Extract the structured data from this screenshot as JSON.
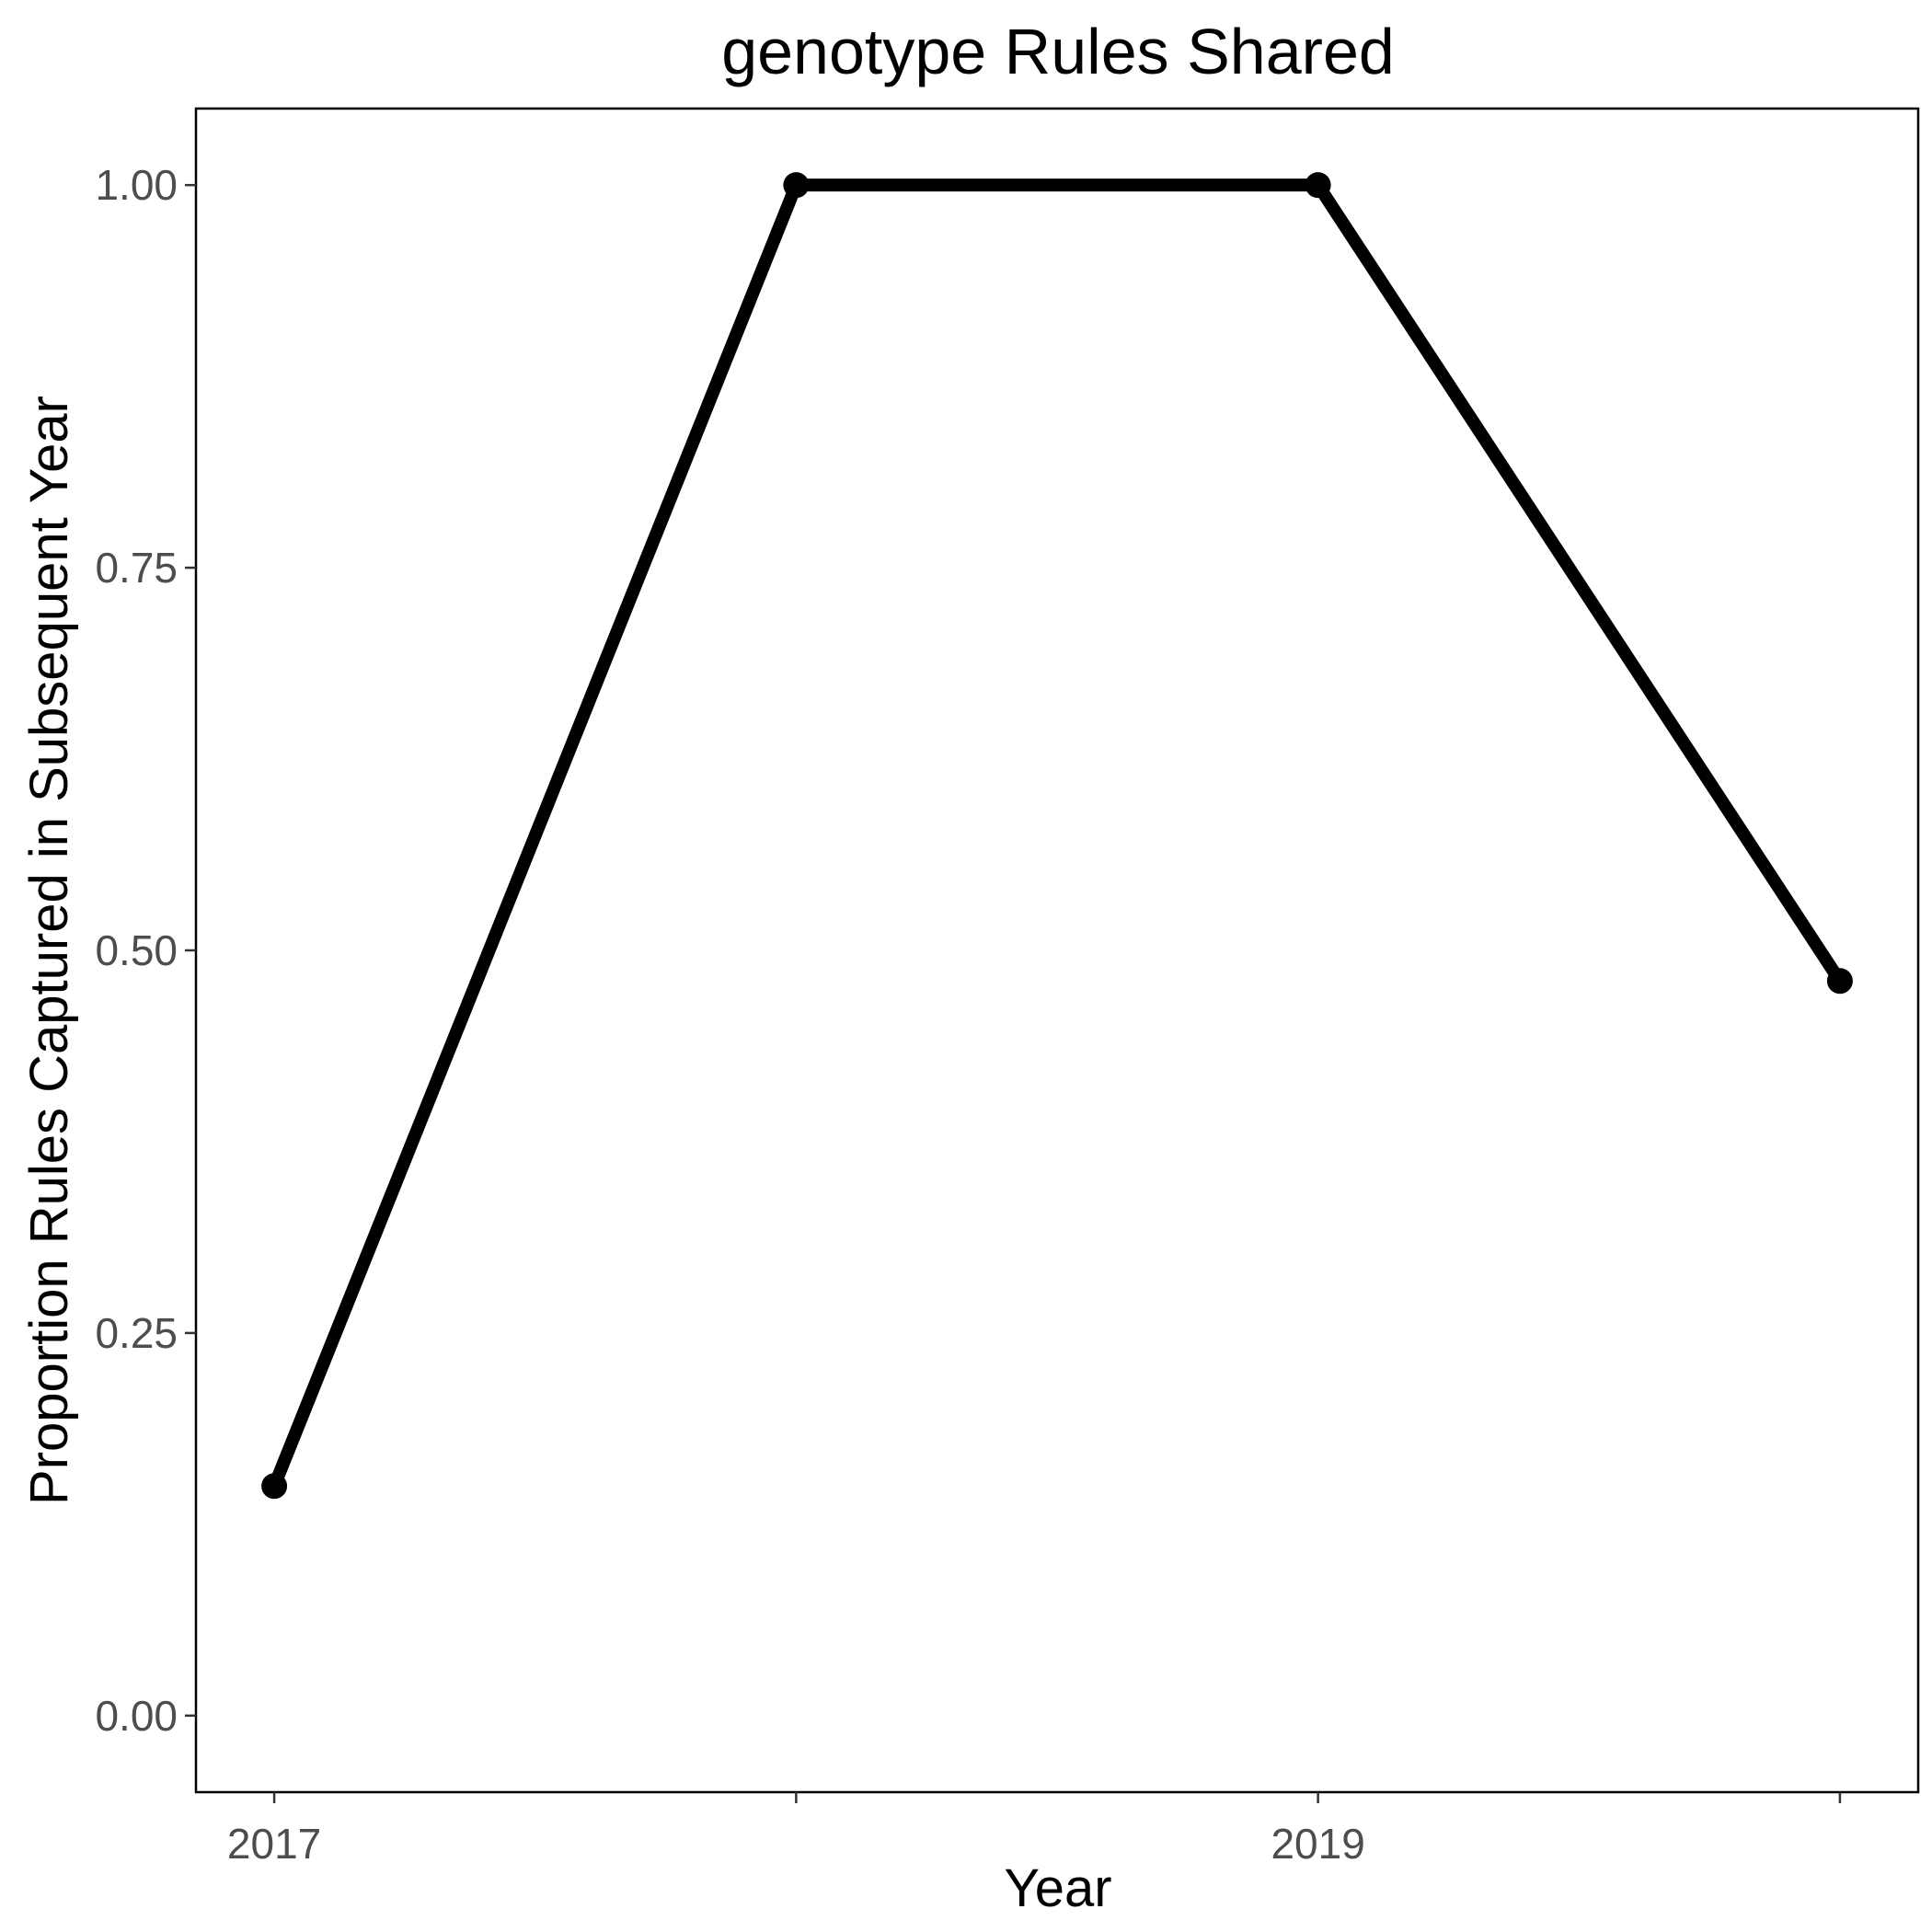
{
  "chart_data": {
    "type": "line",
    "title": "genotype Rules Shared",
    "xlabel": "Year",
    "ylabel": "Proportion Rules Captured in Subsequent Year",
    "x": [
      2017,
      2018,
      2019,
      2020
    ],
    "x_tick_values": [
      2017,
      2019
    ],
    "x_tick_labels": [
      "2017",
      "2019"
    ],
    "xlim": [
      2016.85,
      2020.15
    ],
    "y_tick_values": [
      0,
      0.25,
      0.5,
      0.75,
      1
    ],
    "y_tick_labels": [
      "0.00",
      "0.25",
      "0.50",
      "0.75",
      "1.00"
    ],
    "ylim": [
      -0.05,
      1.05
    ],
    "series": [
      {
        "values": [
          0.15,
          1.0,
          1.0,
          0.48
        ]
      }
    ],
    "grid": false,
    "legend": "none",
    "line_color": "#000000"
  }
}
